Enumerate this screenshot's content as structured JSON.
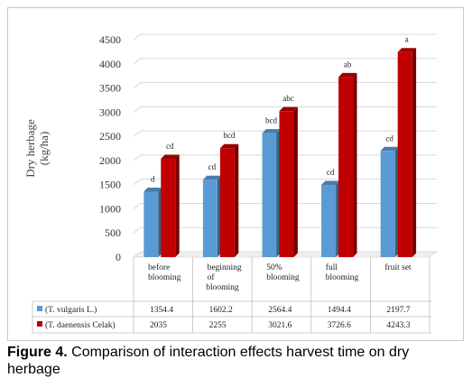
{
  "chart_data": {
    "type": "bar",
    "ylabel_lines": [
      "Dry herbage",
      "(kg/ha)"
    ],
    "ylim": [
      0,
      4500
    ],
    "yticks": [
      0,
      500,
      1000,
      1500,
      2000,
      2500,
      3000,
      3500,
      4000,
      4500
    ],
    "categories": [
      [
        "before",
        "blooming"
      ],
      [
        "beginning",
        "of",
        "blooming"
      ],
      [
        "50%",
        "blooming"
      ],
      [
        "full",
        "blooming"
      ],
      [
        "fruit set"
      ]
    ],
    "series": [
      {
        "name": "(T. vulgaris  L.)",
        "color": "#5b9bd5",
        "values": [
          1354.4,
          1602.2,
          2564.4,
          1494.4,
          2197.7
        ],
        "letters": [
          "d",
          "cd",
          "bcd",
          "cd",
          "cd"
        ]
      },
      {
        "name": "(T. daenensis  Celak)",
        "color": "#c00000",
        "values": [
          2035,
          2255,
          3021.6,
          3726.6,
          4243.3
        ],
        "letters": [
          "cd",
          "bcd",
          "abc",
          "ab",
          "a"
        ]
      }
    ],
    "grid": true,
    "legend": "table-below"
  },
  "caption": {
    "label": "Figure 4.",
    "text": " Comparison of interaction effects harvest time on dry herbage"
  }
}
